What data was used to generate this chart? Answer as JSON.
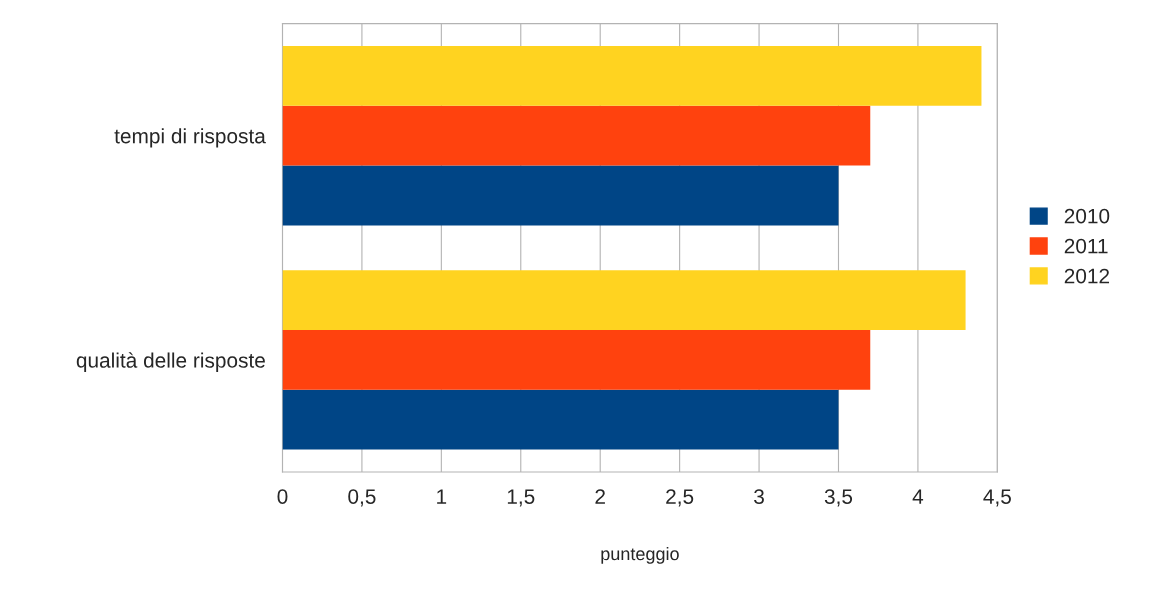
{
  "chart_data": {
    "type": "bar",
    "orientation": "horizontal",
    "xlabel": "punteggio",
    "categories": [
      "tempi di risposta",
      "qualità delle risposte"
    ],
    "series": [
      {
        "name": "2010",
        "color": "#004586",
        "values": [
          3.5,
          3.5
        ]
      },
      {
        "name": "2011",
        "color": "#ff420e",
        "values": [
          3.7,
          3.7
        ]
      },
      {
        "name": "2012",
        "color": "#ffd320",
        "values": [
          4.4,
          4.3
        ]
      }
    ],
    "xlim": [
      0,
      4.5
    ],
    "xticks": [
      0,
      {
        "value": 0.5,
        "label": "0,5"
      },
      1,
      {
        "value": 1.5,
        "label": "1,5"
      },
      2,
      {
        "value": 2.5,
        "label": "2,5"
      },
      3,
      {
        "value": 3.5,
        "label": "3,5"
      },
      4,
      {
        "value": 4.5,
        "label": "4,5"
      }
    ],
    "grid": "x",
    "legend": "right"
  }
}
